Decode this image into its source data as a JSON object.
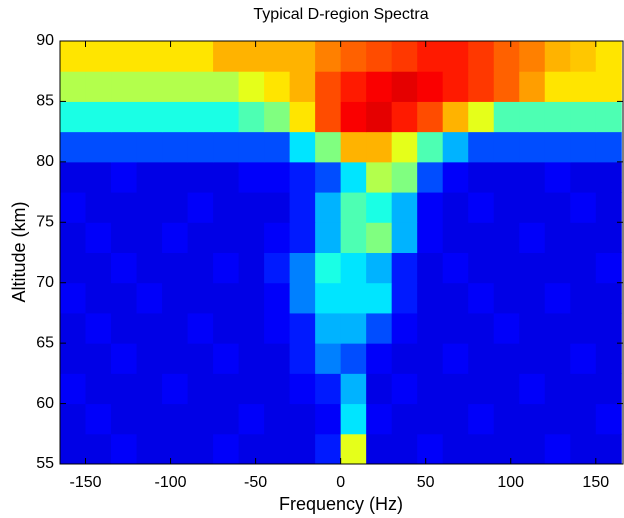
{
  "chart_data": {
    "type": "heatmap",
    "title": "Typical D-region Spectra",
    "x_label": "Frequency (Hz)",
    "y_label": "Altitude (km)",
    "xlim": [
      -165,
      166
    ],
    "ylim": [
      55,
      90
    ],
    "xticks": [
      -150,
      -100,
      -50,
      0,
      50,
      100,
      150
    ],
    "yticks": [
      55,
      60,
      65,
      70,
      75,
      80,
      85,
      90
    ],
    "colormap": "jet",
    "clim": [
      0,
      1
    ],
    "xbins": [
      -165,
      -150,
      -135,
      -120,
      -105,
      -90,
      -75,
      -60,
      -45,
      -30,
      -15,
      0,
      15,
      30,
      45,
      60,
      75,
      90,
      105,
      120,
      135,
      150,
      165
    ],
    "ybins": [
      55,
      57.5,
      60,
      62.5,
      65,
      67.5,
      70,
      72.5,
      75,
      77.5,
      80,
      82.5,
      85,
      87.5,
      90
    ],
    "z": [
      [
        0.1,
        0.1,
        0.12,
        0.1,
        0.1,
        0.1,
        0.12,
        0.1,
        0.1,
        0.1,
        0.15,
        0.6,
        0.1,
        0.1,
        0.12,
        0.1,
        0.1,
        0.1,
        0.1,
        0.12,
        0.1,
        0.1
      ],
      [
        0.1,
        0.12,
        0.1,
        0.1,
        0.1,
        0.1,
        0.1,
        0.12,
        0.1,
        0.1,
        0.12,
        0.35,
        0.12,
        0.1,
        0.1,
        0.1,
        0.12,
        0.1,
        0.1,
        0.1,
        0.1,
        0.12
      ],
      [
        0.12,
        0.1,
        0.1,
        0.1,
        0.12,
        0.1,
        0.1,
        0.1,
        0.1,
        0.12,
        0.15,
        0.3,
        0.1,
        0.12,
        0.1,
        0.1,
        0.1,
        0.1,
        0.12,
        0.1,
        0.1,
        0.1
      ],
      [
        0.1,
        0.1,
        0.12,
        0.1,
        0.1,
        0.1,
        0.12,
        0.1,
        0.1,
        0.15,
        0.25,
        0.2,
        0.12,
        0.1,
        0.1,
        0.12,
        0.1,
        0.1,
        0.1,
        0.1,
        0.12,
        0.1
      ],
      [
        0.1,
        0.12,
        0.1,
        0.1,
        0.1,
        0.12,
        0.1,
        0.1,
        0.12,
        0.15,
        0.3,
        0.3,
        0.2,
        0.12,
        0.1,
        0.1,
        0.1,
        0.12,
        0.1,
        0.1,
        0.1,
        0.1
      ],
      [
        0.12,
        0.1,
        0.1,
        0.12,
        0.1,
        0.1,
        0.1,
        0.1,
        0.12,
        0.25,
        0.35,
        0.35,
        0.35,
        0.15,
        0.1,
        0.1,
        0.12,
        0.1,
        0.1,
        0.12,
        0.1,
        0.1
      ],
      [
        0.1,
        0.1,
        0.12,
        0.1,
        0.1,
        0.1,
        0.12,
        0.1,
        0.15,
        0.25,
        0.4,
        0.35,
        0.3,
        0.15,
        0.1,
        0.12,
        0.1,
        0.1,
        0.1,
        0.1,
        0.1,
        0.12
      ],
      [
        0.1,
        0.12,
        0.1,
        0.1,
        0.12,
        0.1,
        0.1,
        0.1,
        0.12,
        0.15,
        0.3,
        0.45,
        0.5,
        0.3,
        0.12,
        0.1,
        0.1,
        0.1,
        0.12,
        0.1,
        0.1,
        0.1
      ],
      [
        0.12,
        0.1,
        0.1,
        0.1,
        0.1,
        0.12,
        0.1,
        0.1,
        0.1,
        0.15,
        0.3,
        0.45,
        0.4,
        0.3,
        0.12,
        0.1,
        0.12,
        0.1,
        0.1,
        0.1,
        0.12,
        0.1
      ],
      [
        0.1,
        0.1,
        0.12,
        0.1,
        0.1,
        0.1,
        0.1,
        0.12,
        0.12,
        0.15,
        0.2,
        0.35,
        0.55,
        0.5,
        0.2,
        0.12,
        0.1,
        0.1,
        0.1,
        0.12,
        0.1,
        0.1
      ],
      [
        0.2,
        0.2,
        0.2,
        0.2,
        0.2,
        0.2,
        0.2,
        0.2,
        0.2,
        0.35,
        0.5,
        0.7,
        0.7,
        0.6,
        0.45,
        0.3,
        0.2,
        0.2,
        0.2,
        0.2,
        0.2,
        0.2
      ],
      [
        0.4,
        0.4,
        0.4,
        0.4,
        0.4,
        0.4,
        0.4,
        0.45,
        0.5,
        0.65,
        0.8,
        0.88,
        0.9,
        0.85,
        0.8,
        0.7,
        0.6,
        0.45,
        0.45,
        0.45,
        0.45,
        0.45
      ],
      [
        0.55,
        0.55,
        0.55,
        0.55,
        0.55,
        0.55,
        0.55,
        0.6,
        0.65,
        0.7,
        0.8,
        0.85,
        0.88,
        0.9,
        0.88,
        0.85,
        0.82,
        0.78,
        0.72,
        0.65,
        0.65,
        0.65
      ],
      [
        0.65,
        0.65,
        0.65,
        0.65,
        0.65,
        0.65,
        0.7,
        0.7,
        0.7,
        0.7,
        0.75,
        0.78,
        0.8,
        0.82,
        0.85,
        0.85,
        0.82,
        0.78,
        0.75,
        0.7,
        0.68,
        0.65
      ]
    ]
  }
}
